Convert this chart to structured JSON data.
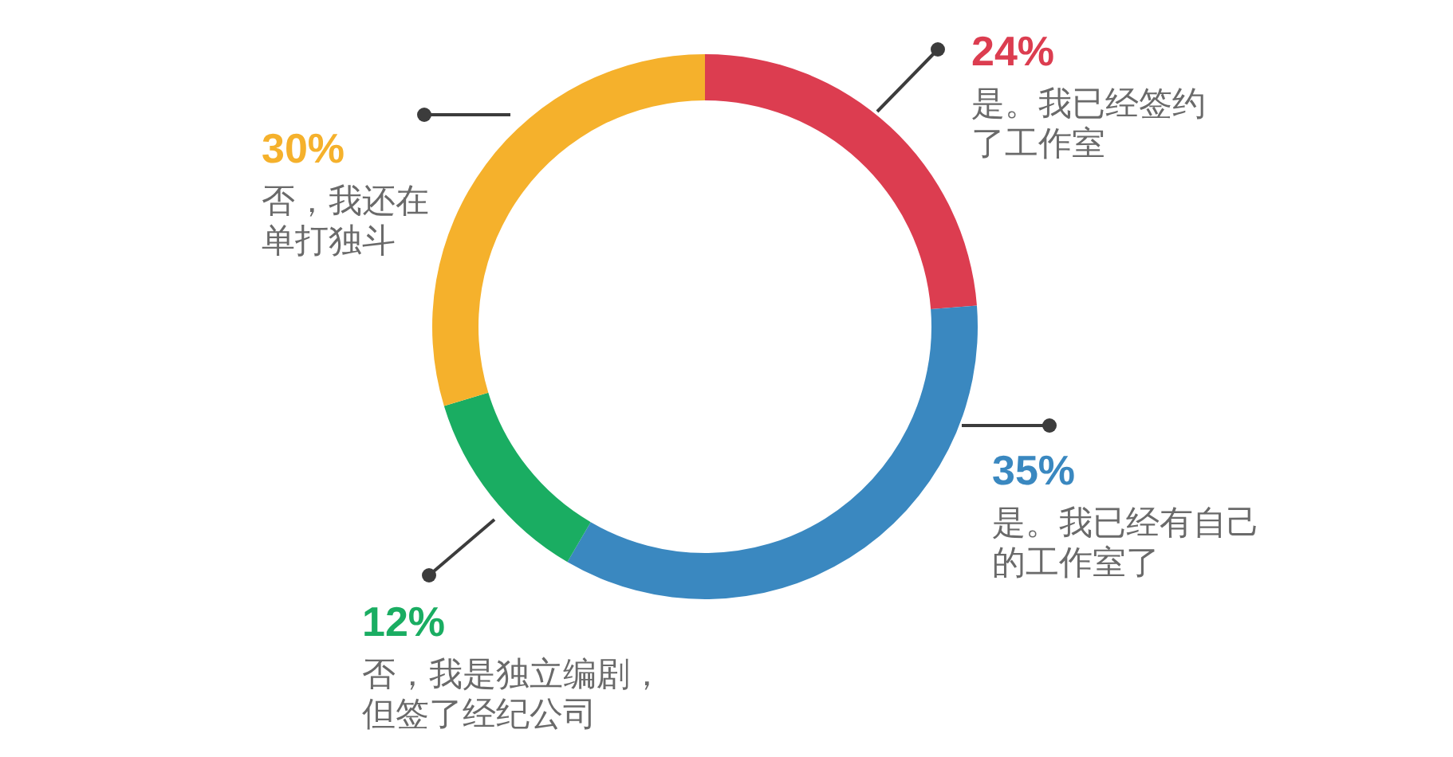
{
  "chart_data": {
    "type": "donut",
    "categories": [
      "是。我已经签约了工作室",
      "是。我已经有自己的工作室了",
      "否，我是独立编剧，但签了经纪公司",
      "否，我还在单打独斗"
    ],
    "values": [
      24,
      35,
      12,
      30
    ],
    "colors": [
      "#dc3d50",
      "#3a88c0",
      "#1aad62",
      "#f5b12c"
    ],
    "value_labels": [
      "24%",
      "35%",
      "12%",
      "30%"
    ]
  }
}
